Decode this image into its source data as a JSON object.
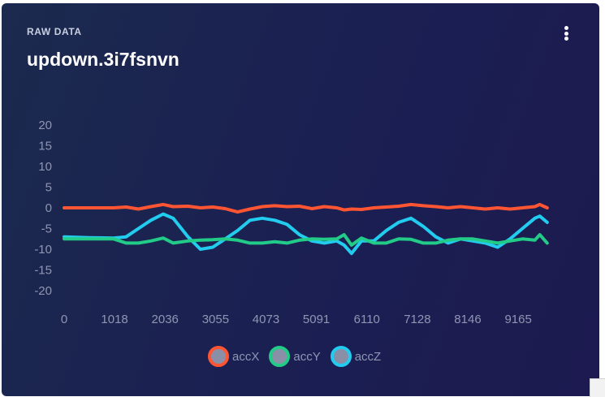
{
  "card": {
    "eyebrow": "RAW DATA",
    "title": "updown.3i7fsnvn"
  },
  "menu": {
    "icon": "more-vertical-icon"
  },
  "colors": {
    "accX": "#ff5533",
    "accY": "#22cc88",
    "accZ": "#22ccee",
    "tick": "#8f96b3"
  },
  "chart_data": {
    "type": "line",
    "title": "",
    "xlabel": "",
    "ylabel": "",
    "xlim": [
      0,
      9900
    ],
    "ylim": [
      -20,
      20
    ],
    "y_ticks": [
      "20",
      "15",
      "10",
      "5",
      "0",
      "-5",
      "-10",
      "-15",
      "-20"
    ],
    "x_ticks": [
      "0",
      "1018",
      "2036",
      "3055",
      "4073",
      "5091",
      "6110",
      "7128",
      "8146",
      "9165"
    ],
    "grid": false,
    "legend_position": "bottom-center",
    "x": [
      0,
      500,
      1000,
      1250,
      1500,
      1750,
      2000,
      2200,
      2500,
      2750,
      3000,
      3250,
      3500,
      3750,
      4000,
      4250,
      4500,
      4750,
      5000,
      5250,
      5500,
      5650,
      5800,
      6000,
      6250,
      6500,
      6750,
      7000,
      7250,
      7500,
      7750,
      8000,
      8250,
      8500,
      8750,
      9000,
      9250,
      9500,
      9600,
      9750
    ],
    "series": [
      {
        "name": "accX",
        "values": [
          0,
          0,
          0,
          0.2,
          -0.3,
          0.3,
          0.8,
          0.3,
          0.4,
          0,
          0.2,
          -0.2,
          -1,
          -0.3,
          0.3,
          0.5,
          0.3,
          0.4,
          -0.2,
          0.3,
          0,
          -0.5,
          -0.3,
          -0.4,
          0,
          0.2,
          0.4,
          0.8,
          0.5,
          0.3,
          0,
          0.3,
          0,
          -0.3,
          0,
          -0.3,
          0,
          0.3,
          0.8,
          0
        ]
      },
      {
        "name": "accY",
        "values": [
          -7.5,
          -7.5,
          -7.5,
          -8.5,
          -8.5,
          -8,
          -7.3,
          -8.5,
          -8,
          -7.8,
          -7.7,
          -7.5,
          -7.8,
          -8.5,
          -8.5,
          -8.2,
          -8.5,
          -7.8,
          -7.5,
          -7.6,
          -7.5,
          -6.5,
          -9,
          -7.3,
          -8.5,
          -8.5,
          -7.5,
          -7.6,
          -8.5,
          -8.5,
          -7.8,
          -7.5,
          -7.5,
          -8,
          -8.5,
          -8,
          -7.5,
          -7.8,
          -6.5,
          -8.5
        ]
      },
      {
        "name": "accZ",
        "values": [
          -7,
          -7.2,
          -7.3,
          -7,
          -5,
          -3,
          -1.5,
          -2.5,
          -7,
          -10,
          -9.5,
          -7.5,
          -5.5,
          -3,
          -2.5,
          -3,
          -4,
          -6.5,
          -8,
          -8.5,
          -8,
          -9,
          -11,
          -8,
          -8,
          -5.5,
          -3.5,
          -2.5,
          -4.5,
          -7,
          -8.5,
          -7.5,
          -8,
          -8.5,
          -9.5,
          -7.5,
          -5,
          -2.5,
          -2,
          -3.5
        ]
      }
    ]
  }
}
